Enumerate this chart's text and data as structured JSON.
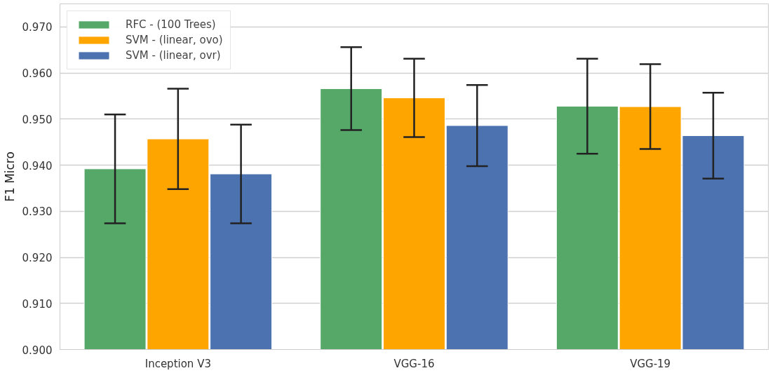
{
  "chart_data": {
    "type": "bar",
    "ylabel": "F1 Micro",
    "categories": [
      "Inception V3",
      "VGG-16",
      "VGG-19"
    ],
    "series": [
      {
        "name": "RFC - (100 Trees)",
        "color": "#55a868",
        "values": [
          0.9392,
          0.9566,
          0.9528
        ],
        "errors": [
          0.0118,
          0.009,
          0.0103
        ]
      },
      {
        "name": "SVM - (linear, ovo)",
        "color": "#ffa500",
        "values": [
          0.9457,
          0.9546,
          0.9527
        ],
        "errors": [
          0.0109,
          0.0085,
          0.0092
        ]
      },
      {
        "name": "SVM - (linear, ovr)",
        "color": "#4c72b0",
        "values": [
          0.9381,
          0.9486,
          0.9464
        ],
        "errors": [
          0.0107,
          0.0088,
          0.0093
        ]
      }
    ],
    "ylim": [
      0.9,
      0.975
    ],
    "yticks": [
      {
        "value": 0.9,
        "label": "0.900"
      },
      {
        "value": 0.91,
        "label": "0.910"
      },
      {
        "value": 0.92,
        "label": "0.920"
      },
      {
        "value": 0.93,
        "label": "0.930"
      },
      {
        "value": 0.94,
        "label": "0.940"
      },
      {
        "value": 0.95,
        "label": "0.950"
      },
      {
        "value": 0.96,
        "label": "0.960"
      },
      {
        "value": 0.97,
        "label": "0.970"
      }
    ],
    "grid": "y",
    "legend": "top left"
  }
}
